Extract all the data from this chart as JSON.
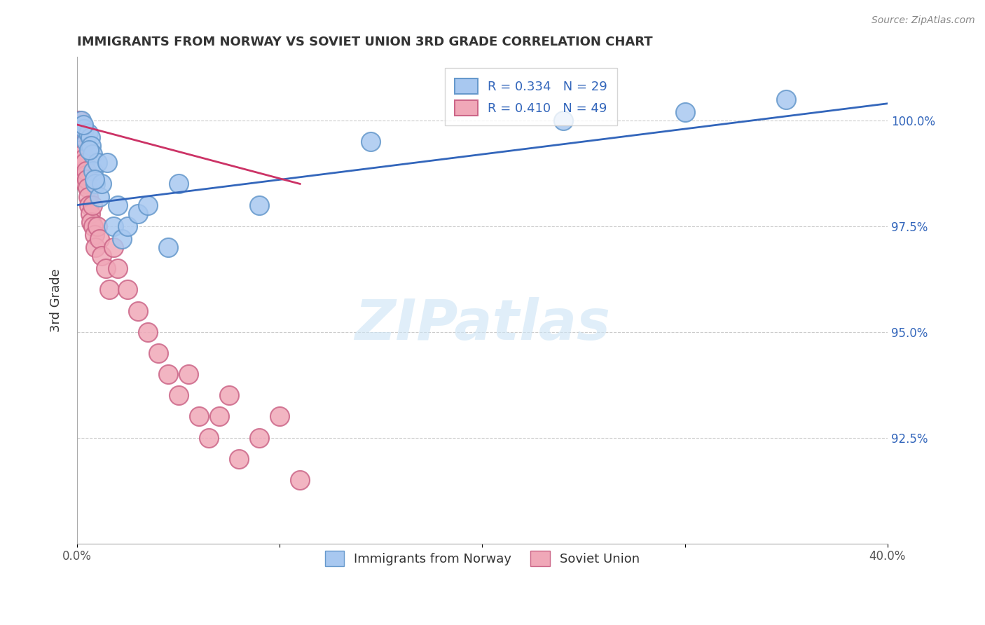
{
  "title": "IMMIGRANTS FROM NORWAY VS SOVIET UNION 3RD GRADE CORRELATION CHART",
  "source": "Source: ZipAtlas.com",
  "label_norway": "Immigrants from Norway",
  "label_soviet": "Soviet Union",
  "ylabel": "3rd Grade",
  "xlim": [
    0.0,
    40.0
  ],
  "ylim": [
    90.0,
    101.5
  ],
  "yticks": [
    92.5,
    95.0,
    97.5,
    100.0
  ],
  "ytick_labels": [
    "92.5%",
    "95.0%",
    "97.5%",
    "100.0%"
  ],
  "norway_color": "#a8c8f0",
  "norway_edge_color": "#6699cc",
  "soviet_color": "#f0a8b8",
  "soviet_edge_color": "#cc6688",
  "trend_color_norway": "#3366bb",
  "trend_color_soviet": "#cc3366",
  "norway_R": 0.334,
  "norway_N": 29,
  "soviet_R": 0.41,
  "soviet_N": 49,
  "norway_points_x": [
    0.2,
    0.35,
    0.45,
    0.55,
    0.65,
    0.7,
    0.75,
    0.8,
    0.9,
    1.0,
    1.1,
    1.2,
    1.5,
    1.8,
    2.0,
    2.2,
    2.5,
    3.0,
    3.5,
    4.5,
    5.0,
    9.0,
    14.5,
    24.0,
    30.0,
    35.0,
    0.3,
    0.6,
    0.85
  ],
  "norway_points_y": [
    100.0,
    99.8,
    99.5,
    99.7,
    99.6,
    99.4,
    99.2,
    98.8,
    98.5,
    99.0,
    98.2,
    98.5,
    99.0,
    97.5,
    98.0,
    97.2,
    97.5,
    97.8,
    98.0,
    97.0,
    98.5,
    98.0,
    99.5,
    100.0,
    100.2,
    100.5,
    99.9,
    99.3,
    98.6
  ],
  "soviet_points_x": [
    0.05,
    0.08,
    0.1,
    0.12,
    0.15,
    0.18,
    0.2,
    0.22,
    0.25,
    0.28,
    0.3,
    0.32,
    0.35,
    0.38,
    0.4,
    0.42,
    0.45,
    0.48,
    0.5,
    0.55,
    0.6,
    0.65,
    0.7,
    0.75,
    0.8,
    0.85,
    0.9,
    1.0,
    1.1,
    1.2,
    1.4,
    1.6,
    1.8,
    2.0,
    2.5,
    3.0,
    3.5,
    4.0,
    4.5,
    5.0,
    5.5,
    6.0,
    6.5,
    7.0,
    7.5,
    8.0,
    9.0,
    10.0,
    11.0
  ],
  "soviet_points_y": [
    100.0,
    99.9,
    100.0,
    99.8,
    99.7,
    99.5,
    99.6,
    99.4,
    99.3,
    99.2,
    99.0,
    98.8,
    99.1,
    99.0,
    98.7,
    98.5,
    98.8,
    98.6,
    98.4,
    98.2,
    98.0,
    97.8,
    97.6,
    98.0,
    97.5,
    97.3,
    97.0,
    97.5,
    97.2,
    96.8,
    96.5,
    96.0,
    97.0,
    96.5,
    96.0,
    95.5,
    95.0,
    94.5,
    94.0,
    93.5,
    94.0,
    93.0,
    92.5,
    93.0,
    93.5,
    92.0,
    92.5,
    93.0,
    91.5
  ],
  "watermark": "ZIPatlas",
  "background_color": "#ffffff",
  "grid_color": "#cccccc",
  "legend_text_color": "#3366bb",
  "axis_label_color": "#555555",
  "title_color": "#333333"
}
